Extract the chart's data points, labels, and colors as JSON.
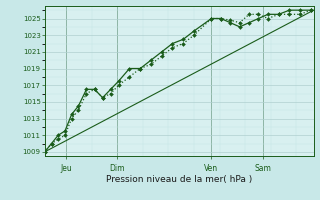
{
  "xlabel": "Pression niveau de la mer( hPa )",
  "ylim": [
    1008.5,
    1026.5
  ],
  "yticks": [
    1009,
    1011,
    1013,
    1015,
    1017,
    1019,
    1021,
    1023,
    1025
  ],
  "background_color": "#c8e8e8",
  "plot_bg_color": "#d8f0f0",
  "grid_major_color": "#b0d0d0",
  "grid_minor_color": "#c4e4e4",
  "line_color": "#1a5c1a",
  "day_labels": [
    "Jeu",
    "Dim",
    "Ven",
    "Sam"
  ],
  "day_positions": [
    0.08,
    0.27,
    0.62,
    0.81
  ],
  "xlim": [
    0.0,
    1.0
  ],
  "line1_x": [
    0.0,
    0.025,
    0.05,
    0.075,
    0.1,
    0.125,
    0.155,
    0.185,
    0.215,
    0.245,
    0.275,
    0.315,
    0.355,
    0.395,
    0.435,
    0.475,
    0.515,
    0.555,
    0.62,
    0.655,
    0.69,
    0.725,
    0.76,
    0.795,
    0.83,
    0.87,
    0.91,
    0.95,
    0.99
  ],
  "line1_y": [
    1009.0,
    1010.0,
    1010.5,
    1011.0,
    1013.0,
    1014.0,
    1016.0,
    1016.5,
    1015.5,
    1016.0,
    1017.0,
    1018.0,
    1019.0,
    1019.5,
    1020.5,
    1021.5,
    1022.0,
    1023.0,
    1025.0,
    1025.0,
    1024.8,
    1024.5,
    1025.5,
    1025.5,
    1025.0,
    1025.5,
    1025.5,
    1025.5,
    1026.0
  ],
  "line2_x": [
    0.0,
    0.025,
    0.05,
    0.075,
    0.1,
    0.125,
    0.155,
    0.185,
    0.215,
    0.245,
    0.275,
    0.315,
    0.355,
    0.395,
    0.435,
    0.475,
    0.515,
    0.555,
    0.62,
    0.655,
    0.69,
    0.725,
    0.76,
    0.795,
    0.83,
    0.87,
    0.91,
    0.95,
    0.99
  ],
  "line2_y": [
    1009.0,
    1010.0,
    1011.0,
    1011.5,
    1013.5,
    1014.5,
    1016.5,
    1016.5,
    1015.5,
    1016.5,
    1017.5,
    1019.0,
    1019.0,
    1020.0,
    1021.0,
    1022.0,
    1022.5,
    1023.5,
    1025.0,
    1025.0,
    1024.5,
    1024.0,
    1024.5,
    1025.0,
    1025.5,
    1025.5,
    1026.0,
    1026.0,
    1026.0
  ],
  "line3_x": [
    0.0,
    1.0
  ],
  "line3_y": [
    1009.0,
    1026.0
  ]
}
